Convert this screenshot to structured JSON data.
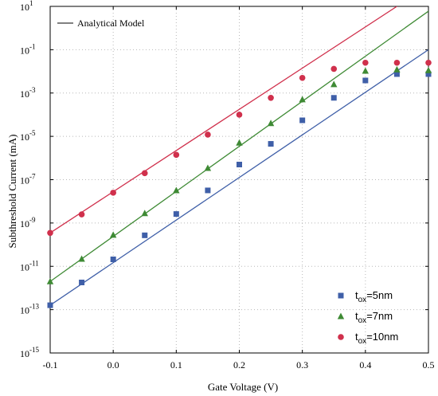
{
  "chart_data": {
    "type": "scatter",
    "title": "",
    "xlabel": "Gate Voltage (V)",
    "ylabel": "Subthreshold Current (mA)",
    "xlim": [
      -0.1,
      0.5
    ],
    "ylim_log10": [
      -15,
      1
    ],
    "yscale": "log",
    "grid": true,
    "x_ticks": [
      "-0.1",
      "0.0",
      "0.1",
      "0.2",
      "0.3",
      "0.4",
      "0.5"
    ],
    "y_ticks": [
      {
        "base": "10",
        "exp": "1"
      },
      {
        "base": "10",
        "exp": "-1"
      },
      {
        "base": "10",
        "exp": "-3"
      },
      {
        "base": "10",
        "exp": "-5"
      },
      {
        "base": "10",
        "exp": "-7"
      },
      {
        "base": "10",
        "exp": "-9"
      },
      {
        "base": "10",
        "exp": "-11"
      },
      {
        "base": "10",
        "exp": "-13"
      },
      {
        "base": "10",
        "exp": "-15"
      }
    ],
    "model_legend": "Analytical Model",
    "model_lines": [
      {
        "series": "tox=5nm",
        "x": [
          -0.1,
          0.5
        ],
        "y": [
          1.6e-13,
          0.1
        ]
      },
      {
        "series": "tox=7nm",
        "x": [
          -0.1,
          0.5
        ],
        "y": [
          2e-12,
          6
        ]
      },
      {
        "series": "tox=10nm",
        "x": [
          -0.1,
          0.45
        ],
        "y": [
          3.5e-10,
          10
        ]
      }
    ],
    "series": [
      {
        "name": "tox=5nm",
        "legend_main": "t",
        "legend_sub": "ox",
        "legend_rest": "=5nm",
        "marker": "square",
        "color": "#3f5fa8",
        "x": [
          -0.1,
          -0.05,
          0.0,
          0.05,
          0.1,
          0.15,
          0.2,
          0.25,
          0.3,
          0.35,
          0.4,
          0.45,
          0.5
        ],
        "y": [
          1.6e-13,
          1.8e-12,
          2.1e-11,
          2.7e-10,
          2.6e-09,
          3.2e-08,
          5e-07,
          4.5e-06,
          5.5e-05,
          0.0006,
          0.0038,
          0.0075,
          0.0075
        ]
      },
      {
        "name": "tox=7nm",
        "legend_main": "t",
        "legend_sub": "ox",
        "legend_rest": "=7nm",
        "marker": "triangle",
        "color": "#3e8a34",
        "x": [
          -0.1,
          -0.05,
          0.0,
          0.05,
          0.1,
          0.15,
          0.2,
          0.25,
          0.3,
          0.35,
          0.4,
          0.45,
          0.5
        ],
        "y": [
          2e-12,
          2.2e-11,
          2.8e-10,
          2.8e-09,
          3.2e-08,
          3.4e-07,
          5e-06,
          4e-05,
          0.0005,
          0.0025,
          0.0105,
          0.012,
          0.011
        ]
      },
      {
        "name": "tox=10nm",
        "legend_main": "t",
        "legend_sub": "ox",
        "legend_rest": "=10nm",
        "marker": "circle",
        "color": "#d0304c",
        "x": [
          -0.1,
          -0.05,
          0.0,
          0.05,
          0.1,
          0.15,
          0.2,
          0.25,
          0.3,
          0.35,
          0.4,
          0.45,
          0.5
        ],
        "y": [
          3.5e-10,
          2.5e-09,
          2.5e-08,
          2e-07,
          1.4e-06,
          1.2e-05,
          0.0001,
          0.0006,
          0.005,
          0.013,
          0.025,
          0.025,
          0.025
        ]
      }
    ]
  }
}
